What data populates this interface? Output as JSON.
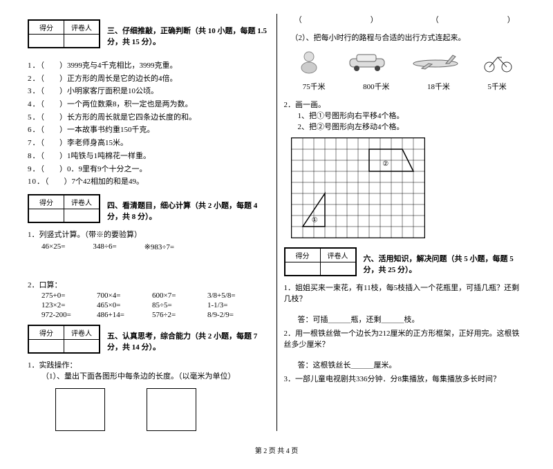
{
  "scorebox": {
    "left": "得分",
    "right": "评卷人"
  },
  "sec3": {
    "title": "三、仔细推敲，正确判断（共 10 小题，每题 1.5 分，共 15 分）。",
    "items": [
      "（　　）3999克与4千克相比，3999克重。",
      "（　　）正方形的周长是它的边长的4倍。",
      "（　　）小明家客厅面积是10公顷。",
      "（　　）一个两位数乘8，积一定也是两为数。",
      "（　　）长方形的周长就是它四条边长度的和。",
      "（　　）一本故事书约重150千克。",
      "（　　）李老师身高15米。",
      "（　　）1吨铁与1吨棉花一样重。",
      "（　　）0．9里有9个十分之一。",
      "（　　）7个42相加的和是49。"
    ]
  },
  "sec4": {
    "title": "四、看清题目，细心计算（共 2 小题，每题 4 分，共 8 分）。",
    "q1": "1．列竖式计算。（带※的要验算）",
    "calc": [
      "46×25=",
      "348÷6=",
      "※983÷7="
    ],
    "q2": "2．口算：",
    "mental": [
      [
        "275+0=",
        "700×4=",
        "600×7=",
        "3/8+5/8="
      ],
      [
        "123×2=",
        "465×0=",
        "85÷5=",
        "1-1/3="
      ],
      [
        "972-200=",
        "486+14=",
        "576÷2=",
        "8/9-2/9="
      ]
    ]
  },
  "sec5": {
    "title": "五、认真思考，综合能力（共 2 小题，每题 7 分，共 14 分）。",
    "q1": "1．实践操作：",
    "q1sub": "（1）、量出下面各图形中每条边的长度。（以毫米为单位）"
  },
  "right_top": "（　　　　　　　　　）　　　　　　　　（　　　　　　　　　）",
  "connect": {
    "title": "（2）、把每小时行的路程与合适的出行方式连起来。",
    "labels": [
      "75千米",
      "800千米",
      "18千米",
      "5千米"
    ]
  },
  "draw": {
    "title": "2．画一画。",
    "s1": "1、把①号图形向右平移4个格。",
    "s2": "2、把②号图形向左移动4个格。",
    "grid": {
      "rows": 9,
      "cols": 12,
      "cell": 16
    },
    "shape1_label": "①",
    "shape2_label": "②"
  },
  "sec6": {
    "title": "六、活用知识，解决问题（共 5 小题，每题 5 分，共 25 分）。",
    "q1": "1．姐姐买来一束花，有11枝，每5枝插入一个花瓶里，可插几瓶？还剩几枝？",
    "a1": "答：可插＿＿＿瓶，还剩＿＿＿枝。",
    "q2": "2．用一根铁丝做一个边长为212厘米的正方形框架，正好用完。这根铁丝多少厘米？",
    "a2": "答：这根铁丝长＿＿＿厘米。",
    "q3": "3．一部儿童电视剧共336分钟．分8集播放，每集播放多长时间？"
  },
  "footer": "第 2 页 共 4 页"
}
